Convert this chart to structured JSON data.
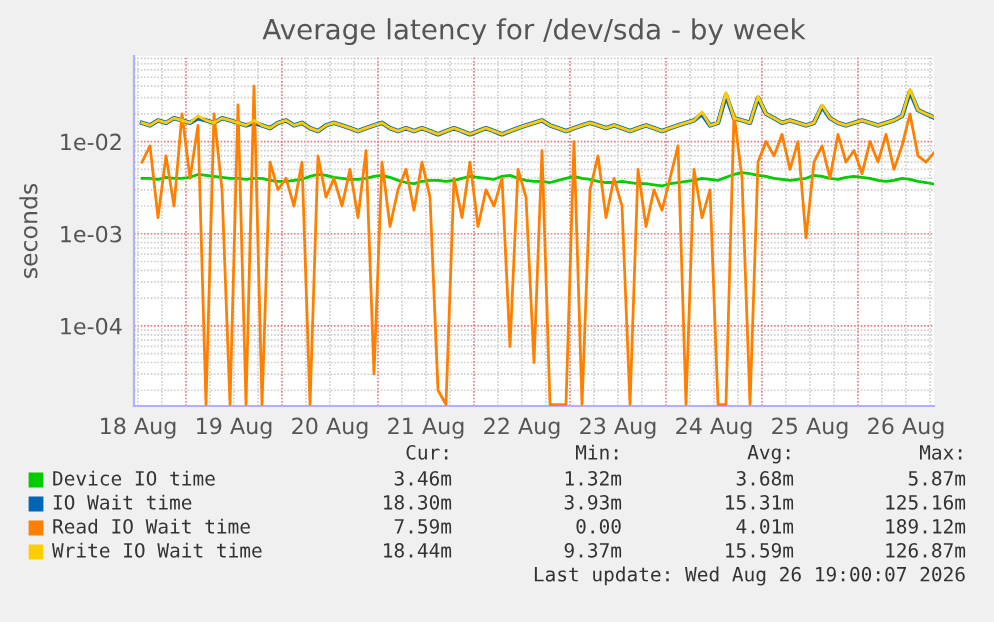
{
  "chart_data": {
    "type": "line",
    "title": "Average latency for /dev/sda - by week",
    "ylabel": "seconds",
    "log": "y",
    "grid": true,
    "legend": "bottom",
    "marker": "none",
    "line_style": "solid",
    "xlim": [
      "2026-08-18T11:00",
      "2026-08-26T19:00"
    ],
    "xticks": [
      {
        "value": "2026-08-18T12:00",
        "label": "18 Aug"
      },
      {
        "value": "2026-08-19T12:00",
        "label": "19 Aug"
      },
      {
        "value": "2026-08-20T12:00",
        "label": "20 Aug"
      },
      {
        "value": "2026-08-21T12:00",
        "label": "21 Aug"
      },
      {
        "value": "2026-08-22T12:00",
        "label": "22 Aug"
      },
      {
        "value": "2026-08-23T12:00",
        "label": "23 Aug"
      },
      {
        "value": "2026-08-24T12:00",
        "label": "24 Aug"
      },
      {
        "value": "2026-08-25T12:00",
        "label": "25 Aug"
      },
      {
        "value": "2026-08-26T12:00",
        "label": "26 Aug"
      }
    ],
    "ylim": [
      1.35e-05,
      0.085
    ],
    "yticks": [
      {
        "value": 0.0001,
        "label": "1e-04"
      },
      {
        "value": 0.001,
        "label": "1e-03"
      },
      {
        "value": 0.01,
        "label": "1e-02"
      }
    ],
    "x": [
      "2026-08-18T13:00",
      "2026-08-18T15:00",
      "2026-08-18T17:00",
      "2026-08-18T19:00",
      "2026-08-18T21:00",
      "2026-08-18T23:00",
      "2026-08-19T01:00",
      "2026-08-19T03:00",
      "2026-08-19T05:00",
      "2026-08-19T07:00",
      "2026-08-19T09:00",
      "2026-08-19T11:00",
      "2026-08-19T13:00",
      "2026-08-19T15:00",
      "2026-08-19T17:00",
      "2026-08-19T19:00",
      "2026-08-19T21:00",
      "2026-08-19T23:00",
      "2026-08-20T01:00",
      "2026-08-20T03:00",
      "2026-08-20T05:00",
      "2026-08-20T07:00",
      "2026-08-20T09:00",
      "2026-08-20T11:00",
      "2026-08-20T13:00",
      "2026-08-20T15:00",
      "2026-08-20T17:00",
      "2026-08-20T19:00",
      "2026-08-20T21:00",
      "2026-08-20T23:00",
      "2026-08-21T01:00",
      "2026-08-21T03:00",
      "2026-08-21T05:00",
      "2026-08-21T07:00",
      "2026-08-21T09:00",
      "2026-08-21T11:00",
      "2026-08-21T13:00",
      "2026-08-21T15:00",
      "2026-08-21T17:00",
      "2026-08-21T19:00",
      "2026-08-21T21:00",
      "2026-08-21T23:00",
      "2026-08-22T01:00",
      "2026-08-22T03:00",
      "2026-08-22T05:00",
      "2026-08-22T07:00",
      "2026-08-22T09:00",
      "2026-08-22T11:00",
      "2026-08-22T13:00",
      "2026-08-22T15:00",
      "2026-08-22T17:00",
      "2026-08-22T19:00",
      "2026-08-22T21:00",
      "2026-08-22T23:00",
      "2026-08-23T01:00",
      "2026-08-23T03:00",
      "2026-08-23T05:00",
      "2026-08-23T07:00",
      "2026-08-23T09:00",
      "2026-08-23T11:00",
      "2026-08-23T13:00",
      "2026-08-23T15:00",
      "2026-08-23T17:00",
      "2026-08-23T19:00",
      "2026-08-23T21:00",
      "2026-08-23T23:00",
      "2026-08-24T01:00",
      "2026-08-24T03:00",
      "2026-08-24T05:00",
      "2026-08-24T07:00",
      "2026-08-24T09:00",
      "2026-08-24T11:00",
      "2026-08-24T13:00",
      "2026-08-24T15:00",
      "2026-08-24T17:00",
      "2026-08-24T19:00",
      "2026-08-24T21:00",
      "2026-08-24T23:00",
      "2026-08-25T01:00",
      "2026-08-25T03:00",
      "2026-08-25T05:00",
      "2026-08-25T07:00",
      "2026-08-25T09:00",
      "2026-08-25T11:00",
      "2026-08-25T13:00",
      "2026-08-25T15:00",
      "2026-08-25T17:00",
      "2026-08-25T19:00",
      "2026-08-25T21:00",
      "2026-08-25T23:00",
      "2026-08-26T01:00",
      "2026-08-26T03:00",
      "2026-08-26T05:00",
      "2026-08-26T07:00",
      "2026-08-26T09:00",
      "2026-08-26T11:00",
      "2026-08-26T13:00",
      "2026-08-26T15:00",
      "2026-08-26T17:00",
      "2026-08-26T19:00"
    ],
    "series": [
      {
        "name": "Device IO time",
        "color": "#00cc00",
        "values": [
          0.004,
          0.004,
          0.0039,
          0.0041,
          0.004,
          0.004,
          0.0041,
          0.0044,
          0.0043,
          0.0042,
          0.0041,
          0.004,
          0.004,
          0.0039,
          0.004,
          0.004,
          0.0038,
          0.0037,
          0.0037,
          0.0038,
          0.0039,
          0.0042,
          0.0044,
          0.0043,
          0.0041,
          0.004,
          0.0039,
          0.0039,
          0.004,
          0.0042,
          0.0043,
          0.0041,
          0.0038,
          0.0036,
          0.0035,
          0.0037,
          0.0038,
          0.0038,
          0.0037,
          0.0038,
          0.004,
          0.0042,
          0.0041,
          0.004,
          0.0039,
          0.0042,
          0.0043,
          0.004,
          0.0038,
          0.0037,
          0.0037,
          0.0036,
          0.0038,
          0.004,
          0.0042,
          0.004,
          0.0039,
          0.0037,
          0.0036,
          0.0036,
          0.0037,
          0.0036,
          0.0035,
          0.0035,
          0.0034,
          0.0033,
          0.0035,
          0.0036,
          0.0037,
          0.0038,
          0.004,
          0.0039,
          0.0038,
          0.0041,
          0.0044,
          0.0046,
          0.0045,
          0.0043,
          0.0042,
          0.004,
          0.0039,
          0.0038,
          0.0039,
          0.004,
          0.0043,
          0.0042,
          0.004,
          0.0039,
          0.0041,
          0.0042,
          0.0041,
          0.004,
          0.0038,
          0.0037,
          0.0038,
          0.004,
          0.0039,
          0.0037,
          0.0036,
          0.00346
        ]
      },
      {
        "name": "IO Wait time",
        "color": "#0066b3",
        "values": [
          0.016,
          0.015,
          0.017,
          0.016,
          0.018,
          0.017,
          0.016,
          0.018,
          0.017,
          0.016,
          0.018,
          0.017,
          0.016,
          0.015,
          0.016,
          0.015,
          0.014,
          0.016,
          0.017,
          0.015,
          0.016,
          0.014,
          0.013,
          0.015,
          0.016,
          0.015,
          0.014,
          0.013,
          0.014,
          0.015,
          0.016,
          0.014,
          0.013,
          0.014,
          0.013,
          0.014,
          0.013,
          0.012,
          0.013,
          0.014,
          0.013,
          0.012,
          0.013,
          0.014,
          0.013,
          0.012,
          0.013,
          0.014,
          0.015,
          0.016,
          0.017,
          0.015,
          0.014,
          0.013,
          0.014,
          0.015,
          0.016,
          0.015,
          0.014,
          0.015,
          0.014,
          0.013,
          0.014,
          0.015,
          0.014,
          0.013,
          0.014,
          0.015,
          0.016,
          0.017,
          0.02,
          0.015,
          0.016,
          0.032,
          0.018,
          0.017,
          0.016,
          0.03,
          0.02,
          0.018,
          0.016,
          0.017,
          0.016,
          0.015,
          0.016,
          0.024,
          0.018,
          0.016,
          0.015,
          0.016,
          0.017,
          0.016,
          0.015,
          0.016,
          0.017,
          0.019,
          0.035,
          0.022,
          0.02,
          0.0183
        ]
      },
      {
        "name": "Read IO Wait time",
        "color": "#ff8000",
        "values": [
          0.006,
          0.009,
          0.0015,
          0.007,
          0.002,
          0.02,
          0.004,
          0.015,
          1.4e-05,
          0.02,
          0.003,
          1.4e-05,
          0.025,
          1.4e-05,
          0.04,
          1.4e-05,
          0.006,
          0.003,
          0.004,
          0.002,
          0.006,
          1.4e-05,
          0.007,
          0.0025,
          0.004,
          0.002,
          0.005,
          0.0015,
          0.008,
          3e-05,
          0.006,
          0.0012,
          0.003,
          0.005,
          0.0018,
          0.006,
          0.0025,
          2e-05,
          1.4e-05,
          0.004,
          0.0015,
          0.006,
          0.0012,
          0.003,
          0.002,
          0.004,
          6e-05,
          0.005,
          0.0025,
          4e-05,
          0.008,
          1.4e-05,
          1.4e-05,
          1.4e-05,
          0.01,
          1.4e-05,
          0.003,
          0.007,
          0.0015,
          0.004,
          0.002,
          1.4e-05,
          0.005,
          0.0012,
          0.003,
          0.0018,
          0.004,
          0.009,
          1.4e-05,
          0.005,
          0.0015,
          0.003,
          1.4e-05,
          1.4e-05,
          0.02,
          0.004,
          1.4e-05,
          0.006,
          0.01,
          0.007,
          0.012,
          0.005,
          0.01,
          0.0009,
          0.006,
          0.009,
          0.004,
          0.012,
          0.006,
          0.008,
          0.0045,
          0.01,
          0.006,
          0.012,
          0.005,
          0.009,
          0.02,
          0.007,
          0.006,
          0.0076
        ]
      },
      {
        "name": "Write IO Wait time",
        "color": "#ffcc00",
        "values": [
          0.016,
          0.015,
          0.017,
          0.016,
          0.018,
          0.017,
          0.016,
          0.019,
          0.017,
          0.016,
          0.018,
          0.017,
          0.016,
          0.015,
          0.017,
          0.015,
          0.014,
          0.016,
          0.017,
          0.015,
          0.016,
          0.014,
          0.013,
          0.015,
          0.016,
          0.015,
          0.014,
          0.013,
          0.014,
          0.015,
          0.016,
          0.014,
          0.013,
          0.014,
          0.013,
          0.014,
          0.013,
          0.012,
          0.013,
          0.014,
          0.013,
          0.012,
          0.013,
          0.014,
          0.013,
          0.012,
          0.013,
          0.014,
          0.015,
          0.016,
          0.017,
          0.015,
          0.014,
          0.013,
          0.014,
          0.015,
          0.016,
          0.015,
          0.014,
          0.015,
          0.014,
          0.013,
          0.014,
          0.015,
          0.014,
          0.013,
          0.014,
          0.015,
          0.016,
          0.017,
          0.021,
          0.015,
          0.016,
          0.034,
          0.018,
          0.017,
          0.016,
          0.031,
          0.02,
          0.018,
          0.016,
          0.017,
          0.016,
          0.015,
          0.016,
          0.025,
          0.018,
          0.016,
          0.015,
          0.016,
          0.017,
          0.016,
          0.015,
          0.016,
          0.017,
          0.019,
          0.037,
          0.022,
          0.02,
          0.0184
        ]
      }
    ],
    "annotations": [
      "Cur:",
      "Min:",
      "Avg:",
      "Max:",
      "3.46m",
      "1.32m",
      "3.68m",
      "5.87m",
      "18.30m",
      "3.93m",
      "15.31m",
      "125.16m",
      "7.59m",
      "0.00",
      "4.01m",
      "189.12m",
      "18.44m",
      "9.37m",
      "15.59m",
      "126.87m",
      "Last update: Wed Aug 26 19:00:07 2026"
    ]
  }
}
